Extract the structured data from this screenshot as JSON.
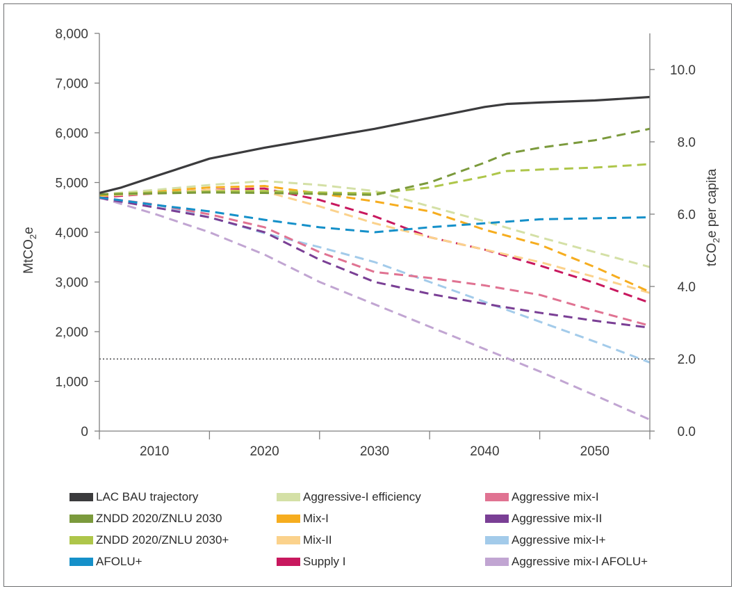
{
  "chart_data": {
    "type": "line",
    "title": "",
    "ylabel": "MtCO",
    "ylabel_sub": "2",
    "ylabel_suffix": "e",
    "y2label": "tCO",
    "y2label_sub": "2",
    "y2label_suffix": "e per capita",
    "ylim": [
      0,
      8000
    ],
    "y2lim": [
      0,
      11
    ],
    "yticks": [
      "0",
      "1,000",
      "2,000",
      "3,000",
      "4,000",
      "5,000",
      "6,000",
      "7,000",
      "8,000"
    ],
    "y2ticks": [
      "0.0",
      "2.0",
      "4.0",
      "6.0",
      "8.0",
      "10.0"
    ],
    "xlim": [
      2005,
      2055
    ],
    "xticks": [
      "2010",
      "2020",
      "2030",
      "2040",
      "2050"
    ],
    "reference_line": {
      "value": 1450,
      "style": "dotted"
    },
    "legend_placement": "bottom",
    "series": [
      {
        "name": "LAC BAU trajectory",
        "color": "#3b3b3d",
        "dashed": false,
        "x": [
          2005,
          2007,
          2010,
          2015,
          2020,
          2025,
          2030,
          2035,
          2040,
          2042,
          2045,
          2050,
          2055
        ],
        "y": [
          4790,
          4900,
          5120,
          5480,
          5700,
          5890,
          6080,
          6300,
          6520,
          6580,
          6610,
          6650,
          6720
        ]
      },
      {
        "name": "ZNDD 2020/ZNLU 2030",
        "color": "#7b9a3c",
        "dashed": true,
        "x": [
          2005,
          2010,
          2015,
          2020,
          2025,
          2030,
          2035,
          2040,
          2042,
          2045,
          2050,
          2055
        ],
        "y": [
          4760,
          4780,
          4800,
          4790,
          4770,
          4750,
          5000,
          5400,
          5580,
          5700,
          5850,
          6080
        ]
      },
      {
        "name": "ZNDD 2020/ZNLU 2030+",
        "color": "#aec64a",
        "dashed": true,
        "x": [
          2005,
          2010,
          2015,
          2020,
          2025,
          2030,
          2035,
          2040,
          2042,
          2045,
          2050,
          2055
        ],
        "y": [
          4760,
          4800,
          4820,
          4830,
          4800,
          4780,
          4900,
          5120,
          5230,
          5260,
          5300,
          5370
        ]
      },
      {
        "name": "AFOLU+",
        "color": "#1590c9",
        "dashed": true,
        "x": [
          2005,
          2010,
          2015,
          2020,
          2025,
          2030,
          2035,
          2040,
          2045,
          2050,
          2055
        ],
        "y": [
          4700,
          4550,
          4420,
          4250,
          4100,
          4000,
          4100,
          4180,
          4260,
          4280,
          4300
        ]
      },
      {
        "name": "Aggressive-I efficiency",
        "color": "#d4e0a6",
        "dashed": true,
        "x": [
          2005,
          2010,
          2015,
          2020,
          2025,
          2030,
          2035,
          2040,
          2045,
          2050,
          2055
        ],
        "y": [
          4760,
          4850,
          4950,
          5030,
          4950,
          4830,
          4520,
          4220,
          3900,
          3600,
          3300
        ]
      },
      {
        "name": "Mix-I",
        "color": "#f6ad1f",
        "dashed": true,
        "x": [
          2005,
          2010,
          2015,
          2020,
          2025,
          2030,
          2035,
          2040,
          2045,
          2050,
          2055
        ],
        "y": [
          4740,
          4820,
          4900,
          4930,
          4780,
          4620,
          4420,
          4050,
          3750,
          3300,
          2800
        ]
      },
      {
        "name": "Mix-II",
        "color": "#fbd28c",
        "dashed": true,
        "x": [
          2005,
          2010,
          2015,
          2020,
          2025,
          2030,
          2035,
          2040,
          2045,
          2050,
          2055
        ],
        "y": [
          4730,
          4780,
          4850,
          4820,
          4520,
          4180,
          3900,
          3650,
          3400,
          3100,
          2780
        ]
      },
      {
        "name": "Supply I",
        "color": "#c8185e",
        "dashed": true,
        "x": [
          2005,
          2010,
          2015,
          2020,
          2025,
          2030,
          2035,
          2040,
          2045,
          2050,
          2055
        ],
        "y": [
          4700,
          4780,
          4850,
          4880,
          4650,
          4320,
          3900,
          3650,
          3330,
          2980,
          2580
        ]
      },
      {
        "name": "Aggressive mix-I",
        "color": "#e07392",
        "dashed": true,
        "x": [
          2005,
          2010,
          2015,
          2020,
          2025,
          2030,
          2035,
          2040,
          2045,
          2050,
          2055
        ],
        "y": [
          4700,
          4560,
          4360,
          4100,
          3600,
          3200,
          3080,
          2930,
          2740,
          2420,
          2120
        ]
      },
      {
        "name": "Aggressive mix-II",
        "color": "#7a3f95",
        "dashed": true,
        "x": [
          2005,
          2010,
          2015,
          2020,
          2025,
          2030,
          2035,
          2040,
          2045,
          2050,
          2055
        ],
        "y": [
          4690,
          4500,
          4300,
          4000,
          3450,
          3000,
          2760,
          2560,
          2380,
          2220,
          2080
        ]
      },
      {
        "name": "Aggressive mix-I+",
        "color": "#a3cbea",
        "dashed": true,
        "x": [
          2005,
          2010,
          2015,
          2020,
          2025,
          2030,
          2035,
          2040,
          2045,
          2050,
          2055
        ],
        "y": [
          4700,
          4560,
          4300,
          3980,
          3700,
          3400,
          3000,
          2600,
          2200,
          1800,
          1380
        ]
      },
      {
        "name": "Aggressive mix-I AFOLU+",
        "color": "#c1a5d2",
        "dashed": true,
        "x": [
          2005,
          2010,
          2015,
          2020,
          2025,
          2030,
          2035,
          2040,
          2045,
          2050,
          2055
        ],
        "y": [
          4700,
          4370,
          4000,
          3550,
          3000,
          2550,
          2100,
          1650,
          1200,
          720,
          230
        ]
      }
    ]
  }
}
